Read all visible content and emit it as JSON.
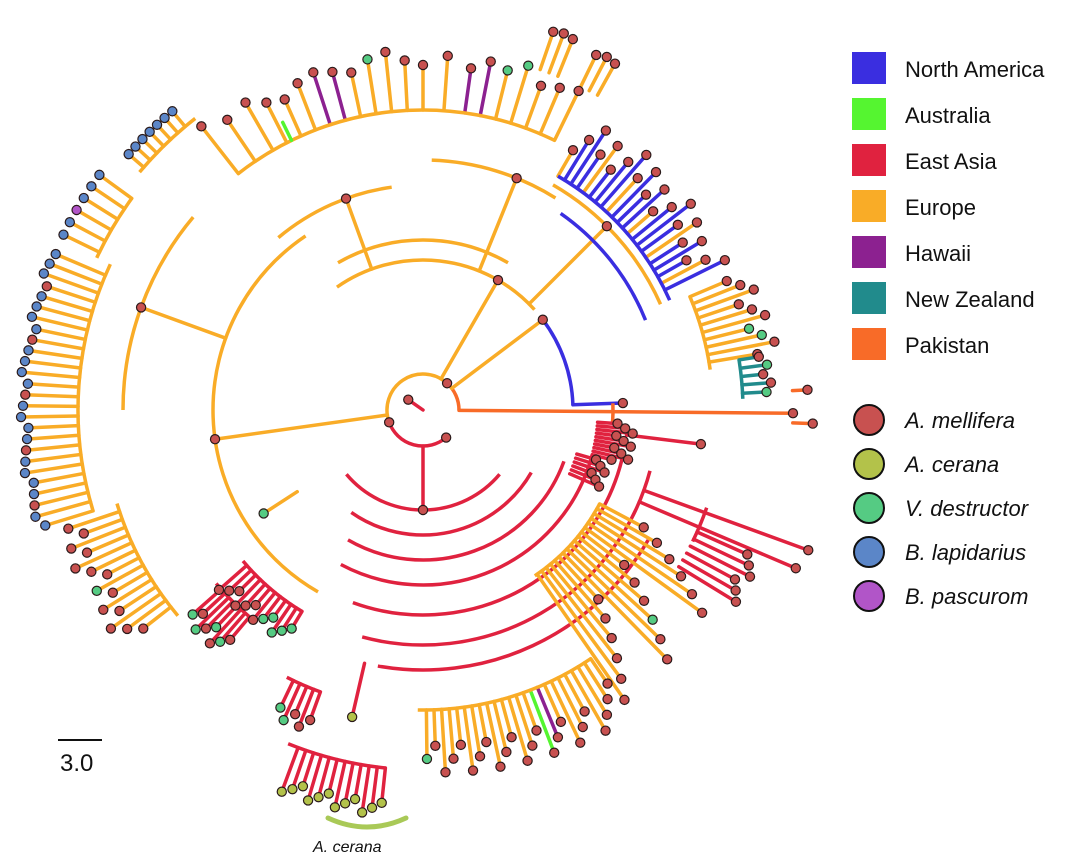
{
  "figure": {
    "type": "circular-phylogenetic-tree",
    "region_legend": [
      {
        "label": "North America",
        "color": "#3a2ee0"
      },
      {
        "label": "Australia",
        "color": "#55f530"
      },
      {
        "label": "East Asia",
        "color": "#e0223f"
      },
      {
        "label": "Europe",
        "color": "#f9ac27"
      },
      {
        "label": "Hawaii",
        "color": "#8c2190"
      },
      {
        "label": "New Zealand",
        "color": "#218b8c"
      },
      {
        "label": "Pakistan",
        "color": "#f86b28"
      }
    ],
    "host_legend": [
      {
        "label": "A. mellifera",
        "color": "#c85150"
      },
      {
        "label": "A. cerana",
        "color": "#b3c24a"
      },
      {
        "label": "V. destructor",
        "color": "#55cb83"
      },
      {
        "label": "B. lapidarius",
        "color": "#5b86c8"
      },
      {
        "label": "B. pascurom",
        "color": "#b155c8"
      }
    ],
    "scale_bar": {
      "label": "3.0"
    },
    "clade_label": {
      "label": "A. cerana",
      "color": "#a9c957"
    }
  }
}
